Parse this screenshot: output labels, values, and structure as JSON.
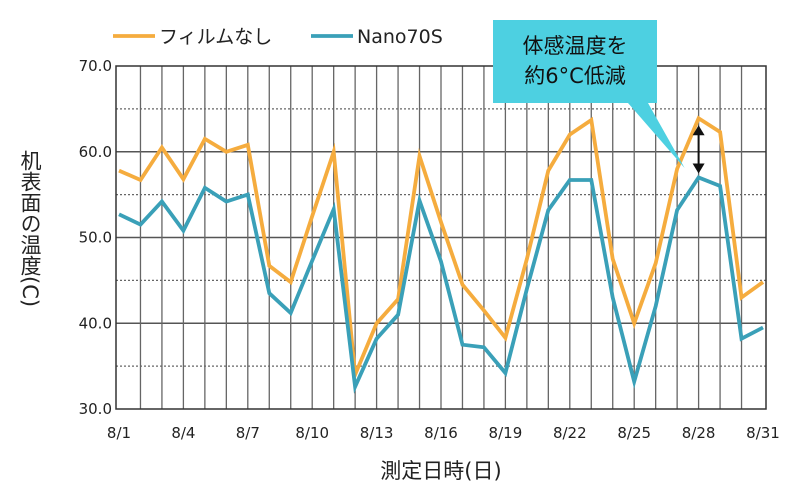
{
  "chart_data": {
    "type": "line",
    "ylabel": "机表面の温度(C)",
    "xlabel": "測定日時(日)",
    "ylim": [
      30,
      70
    ],
    "yticks": [
      "30.0",
      "40.0",
      "50.0",
      "60.0",
      "70.0"
    ],
    "x": [
      "8/1",
      "8/2",
      "8/3",
      "8/4",
      "8/5",
      "8/6",
      "8/7",
      "8/8",
      "8/9",
      "8/10",
      "8/11",
      "8/12",
      "8/13",
      "8/14",
      "8/15",
      "8/16",
      "8/17",
      "8/18",
      "8/19",
      "8/20",
      "8/21",
      "8/22",
      "8/23",
      "8/24",
      "8/25",
      "8/26",
      "8/27",
      "8/28",
      "8/29",
      "8/30",
      "8/31"
    ],
    "xtick_labels": [
      "8/1",
      "8/4",
      "8/7",
      "8/10",
      "8/13",
      "8/16",
      "8/19",
      "8/22",
      "8/25",
      "8/28",
      "8/31"
    ],
    "grid": true,
    "legend_position": "top-left",
    "series": [
      {
        "name": "フィルムなし",
        "color": "#F5AC3E",
        "values": [
          57.8,
          56.7,
          60.5,
          56.8,
          61.5,
          60.0,
          60.8,
          46.7,
          44.8,
          52.5,
          60.0,
          34.0,
          40.0,
          42.8,
          59.5,
          51.8,
          44.5,
          41.5,
          38.3,
          47.5,
          57.8,
          62.0,
          63.7,
          47.5,
          40.0,
          47.0,
          58.0,
          63.9,
          62.3,
          43.0,
          44.8
        ]
      },
      {
        "name": "Nano70S",
        "color": "#3AA0B8",
        "values": [
          52.7,
          51.5,
          54.2,
          50.8,
          55.8,
          54.2,
          55.0,
          43.5,
          41.2,
          47.3,
          53.3,
          32.6,
          38.2,
          41.0,
          54.3,
          47.2,
          37.5,
          37.2,
          34.2,
          44.0,
          53.2,
          56.7,
          56.7,
          43.0,
          33.2,
          42.0,
          53.2,
          57.0,
          56.0,
          38.2,
          39.5
        ]
      }
    ],
    "annotation": {
      "lines": [
        "体感温度を",
        "約6°C低減"
      ],
      "x": "8/28",
      "y_top": 63.9,
      "y_bottom": 57.0,
      "color": "#4DD0E1"
    }
  }
}
